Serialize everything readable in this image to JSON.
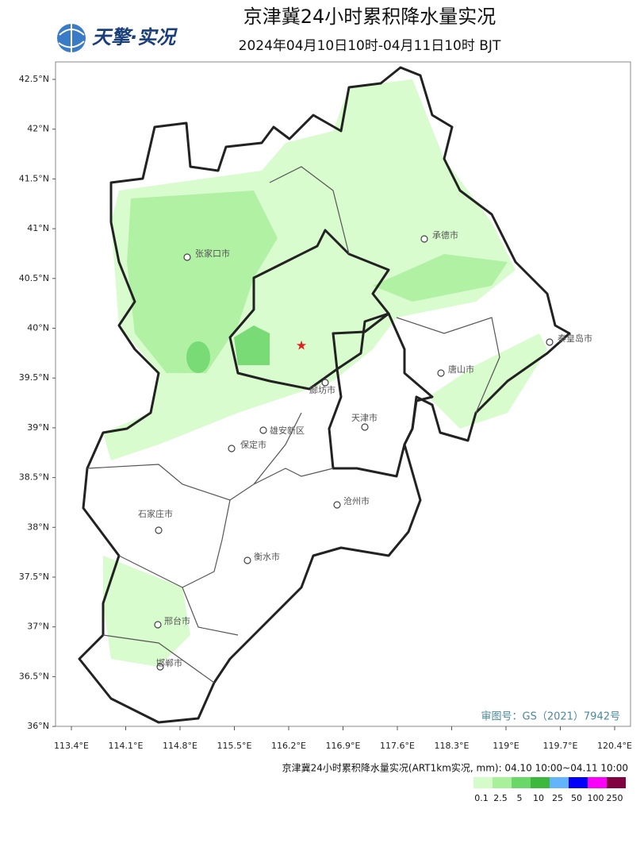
{
  "header": {
    "logo": "天擎·实况",
    "title": "京津冀24小时累积降水量实况",
    "subtitle": "2024年04月10日10时-04月11日10时 BJT"
  },
  "map": {
    "lat_labels": [
      "42.5°N",
      "42°N",
      "41.5°N",
      "41°N",
      "40.5°N",
      "40°N",
      "39.5°N",
      "39°N",
      "38.5°N",
      "38°N",
      "37.5°N",
      "37°N",
      "36.5°N",
      "36°N"
    ],
    "lon_labels": [
      "113.4°E",
      "114.1°E",
      "114.8°E",
      "115.5°E",
      "116.2°E",
      "116.9°E",
      "117.6°E",
      "118.3°E",
      "119°E",
      "119.7°E",
      "120.4°E"
    ],
    "cities": [
      "张家口市",
      "承德市",
      "秦皇岛市",
      "唐山市",
      "廊坊市",
      "天津市",
      "雄安新区",
      "保定市",
      "沧州市",
      "石家庄市",
      "衡水市",
      "邢台市",
      "邯郸市"
    ],
    "approval": "审图号：GS（2021）7942号"
  },
  "legend": {
    "title": "京津冀24小时累积降水量实况(ART1km实况, mm): 04.10 10:00~04.11 10:00",
    "bins": [
      {
        "label": "0.1",
        "color": "#d4fcc8"
      },
      {
        "label": "2.5",
        "color": "#a8f09a"
      },
      {
        "label": "5",
        "color": "#6ad868"
      },
      {
        "label": "10",
        "color": "#3cb83c"
      },
      {
        "label": "25",
        "color": "#62b4fc"
      },
      {
        "label": "50",
        "color": "#0000fa"
      },
      {
        "label": "100",
        "color": "#fa00fa"
      },
      {
        "label": "250",
        "color": "#800040"
      }
    ]
  }
}
